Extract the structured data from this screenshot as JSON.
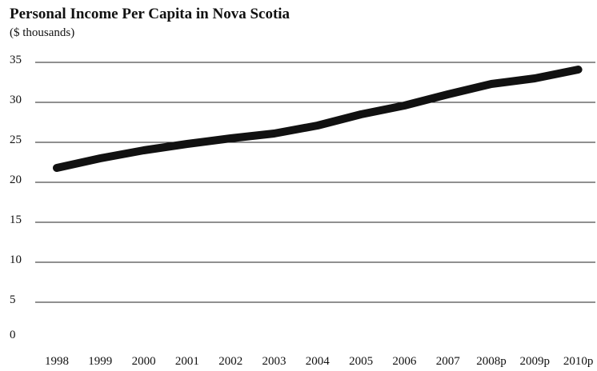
{
  "chart_data": {
    "type": "line",
    "title": "Personal Income Per Capita in Nova Scotia",
    "subtitle": "($ thousands)",
    "xlabel": "",
    "ylabel": "",
    "categories": [
      "1998",
      "1999",
      "2000",
      "2001",
      "2002",
      "2003",
      "2004",
      "2005",
      "2006",
      "2007",
      "2008p",
      "2009p",
      "2010p"
    ],
    "series": [
      {
        "values": [
          21.8,
          23.0,
          24.0,
          24.8,
          25.5,
          26.1,
          27.1,
          28.5,
          29.6,
          31.0,
          32.3,
          33.0,
          34.1
        ]
      }
    ],
    "ylim": [
      0,
      35
    ],
    "yticks": [
      0,
      5,
      10,
      15,
      20,
      25,
      30,
      35
    ],
    "grid": true,
    "legend": "none",
    "line_color": "#111111"
  }
}
